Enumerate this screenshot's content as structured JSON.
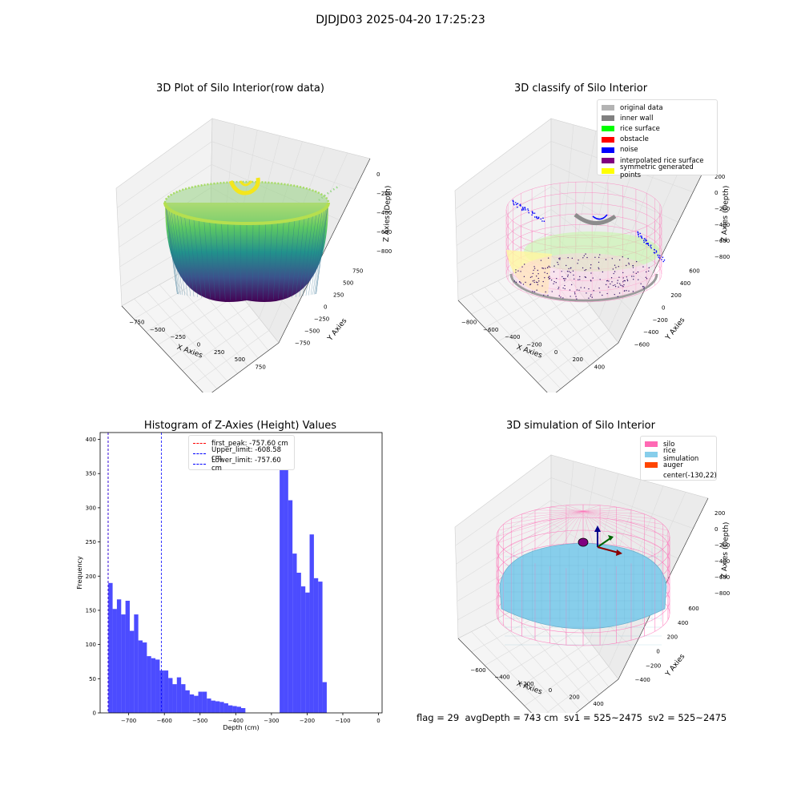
{
  "suptitle": "DJDJD03 2025-04-20 17:25:23",
  "panels": {
    "raw": {
      "title": "3D Plot of Silo Interior(row data)",
      "xlabel": "X Axies",
      "ylabel": "Y Axies",
      "zlabel": "Z Axies (Depth)",
      "xticks": [
        "−750",
        "−500",
        "−250",
        "0",
        "250",
        "500",
        "750"
      ],
      "yticks": [
        "−750",
        "−500",
        "−250",
        "0",
        "250",
        "500",
        "750"
      ],
      "zticks": [
        "0",
        "−200",
        "−400",
        "−600",
        "−800"
      ]
    },
    "classify": {
      "title": "3D classify of Silo Interior",
      "xlabel": "X Axies",
      "ylabel": "Y Axies",
      "zlabel": "Z Axies (Depth)",
      "xticks": [
        "−800",
        "−600",
        "−400",
        "−200",
        "0",
        "200",
        "400"
      ],
      "yticks": [
        "−600",
        "−400",
        "−200",
        "0",
        "200",
        "400",
        "600"
      ],
      "zticks": [
        "200",
        "0",
        "−200",
        "−400",
        "−600",
        "−800"
      ],
      "legend": [
        {
          "label": "original data",
          "color": "#b3b3b3"
        },
        {
          "label": "inner wall",
          "color": "#808080"
        },
        {
          "label": "rice surface",
          "color": "#00ff00"
        },
        {
          "label": "obstacle",
          "color": "#ff0000"
        },
        {
          "label": "noise",
          "color": "#0000ff"
        },
        {
          "label": "interpolated rice surface",
          "color": "#800080"
        },
        {
          "label": "symmetric generated points",
          "color": "#ffff00"
        }
      ]
    },
    "simulation": {
      "title": "3D simulation of Silo Interior",
      "xlabel": "X Axies",
      "ylabel": "Y Axies",
      "zlabel": "Z Axies (Depth)",
      "xticks": [
        "−600",
        "−400",
        "−200",
        "0",
        "200",
        "400"
      ],
      "yticks": [
        "−400",
        "−200",
        "0",
        "200",
        "400",
        "600"
      ],
      "zticks": [
        "200",
        "0",
        "−200",
        "−400",
        "−600",
        "−800"
      ],
      "legend": [
        {
          "label": "silo",
          "color": "#ff69b4"
        },
        {
          "label": "rice simulation",
          "color": "#87ceeb"
        },
        {
          "label": "auger",
          "color": "#ff4500"
        },
        {
          "label": "center(-130,22)",
          "color": ""
        }
      ]
    }
  },
  "chart_data": {
    "type": "bar",
    "title": "Histogram of Z-Axies (Height) Values",
    "xlabel": "Depth (cm)",
    "ylabel": "Frequency",
    "xlim": [
      -780,
      10
    ],
    "ylim": [
      0,
      410
    ],
    "xticks": [
      -700,
      -600,
      -500,
      -400,
      -300,
      -200,
      -100,
      0
    ],
    "yticks": [
      0,
      50,
      100,
      150,
      200,
      250,
      300,
      350,
      400
    ],
    "bin_width": 12,
    "bins_start": [
      -757,
      -745,
      -733,
      -721,
      -709,
      -697,
      -685,
      -673,
      -661,
      -649,
      -637,
      -625,
      -613,
      -601,
      -589,
      -577,
      -565,
      -553,
      -541,
      -529,
      -517,
      -505,
      -493,
      -481,
      -469,
      -457,
      -445,
      -433,
      -421,
      -409,
      -397,
      -385,
      -373,
      -361,
      -349,
      -337,
      -325,
      -313,
      -301,
      -289,
      -277,
      -265,
      -253,
      -241,
      -229,
      -217,
      -205,
      -193,
      -181,
      -169,
      -157,
      -145,
      -133,
      -121,
      -109,
      -97,
      -85,
      -73,
      -61,
      -49,
      -37,
      -25,
      -13
    ],
    "counts": [
      190,
      152,
      166,
      144,
      164,
      120,
      144,
      106,
      103,
      83,
      80,
      78,
      62,
      62,
      51,
      42,
      52,
      42,
      33,
      27,
      25,
      31,
      31,
      21,
      18,
      17,
      16,
      14,
      11,
      10,
      9,
      7,
      0,
      0,
      0,
      0,
      0,
      0,
      0,
      0,
      375,
      388,
      311,
      233,
      205,
      185,
      176,
      261,
      197,
      192,
      45,
      0,
      0,
      0,
      0,
      0,
      0,
      0,
      0,
      0,
      0,
      0,
      0
    ],
    "color": "#0000ff",
    "vlines": [
      {
        "label": "first_peak: -757.60 cm",
        "x": -757.6,
        "color": "#ff0000"
      },
      {
        "label": "Upper_limit: -608.58 cm",
        "x": -608.58,
        "color": "#0000ff"
      },
      {
        "label": "Lower_limit: -757.60 cm",
        "x": -757.6,
        "color": "#0000ff"
      }
    ]
  },
  "status": {
    "flag": "flag = 29",
    "avg_depth": "avgDepth = 743 cm",
    "sv1": "sv1 = 525~2475",
    "sv2": "sv2 = 525~2475"
  }
}
